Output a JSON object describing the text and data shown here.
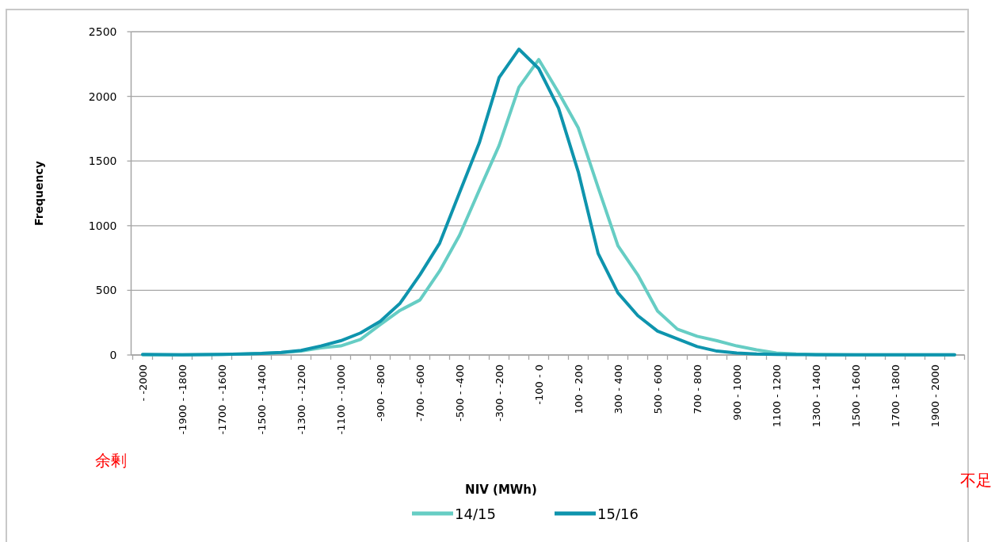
{
  "chart_data": {
    "type": "line",
    "ylabel": "Frequency",
    "xlabel": "NIV (MWh)",
    "categories": [
      "- -2000",
      null,
      "-1900 - -1800",
      null,
      "-1700 - -1600",
      null,
      "-1500 - -1400",
      null,
      "-1300 - -1200",
      null,
      "-1100 - -1000",
      null,
      "-900 - -800",
      null,
      "-700 - -600",
      null,
      "-500 - -400",
      null,
      "-300 - -200",
      null,
      "-100 - 0",
      null,
      "100 - 200",
      null,
      "300 - 400",
      null,
      "500 - 600",
      null,
      "700 - 800",
      null,
      "900 - 1000",
      null,
      "1100 - 1200",
      null,
      "1300 - 1400",
      null,
      "1500 - 1600",
      null,
      "1700 - 1800",
      null,
      "1900 - 2000",
      null
    ],
    "series": [
      {
        "name": "14/15",
        "color": "#66cdc4",
        "values": [
          2,
          2,
          2,
          3,
          5,
          8,
          12,
          18,
          30,
          55,
          70,
          120,
          235,
          345,
          425,
          650,
          925,
          1275,
          1620,
          2070,
          2285,
          2030,
          1755,
          1295,
          845,
          620,
          340,
          200,
          145,
          110,
          70,
          40,
          15,
          8,
          5,
          3,
          2,
          2,
          2,
          2,
          2,
          2
        ]
      },
      {
        "name": "15/16",
        "color": "#0e94ad",
        "values": [
          5,
          3,
          2,
          3,
          5,
          8,
          12,
          20,
          35,
          70,
          110,
          170,
          260,
          400,
          620,
          865,
          1255,
          1640,
          2145,
          2365,
          2215,
          1910,
          1415,
          785,
          480,
          305,
          185,
          125,
          65,
          30,
          15,
          8,
          5,
          3,
          2,
          2,
          2,
          2,
          2,
          2,
          2,
          2
        ]
      }
    ],
    "ylim": [
      0,
      2500
    ],
    "yticks": [
      0,
      500,
      1000,
      1500,
      2000,
      2500
    ],
    "grid": "y",
    "legend": "bottom",
    "marker": "none",
    "line_style": "solid",
    "annotations": [
      "余剰",
      "不足"
    ]
  }
}
